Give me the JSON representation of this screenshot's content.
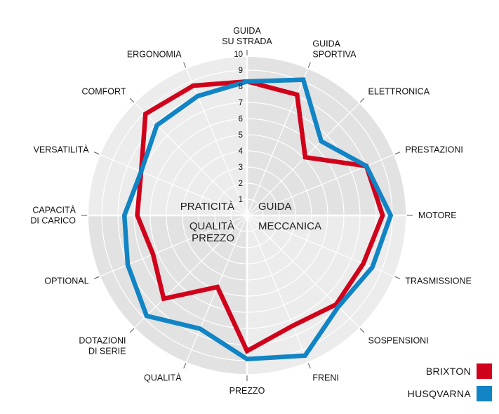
{
  "chart_data": {
    "type": "radar",
    "title": "",
    "scale": {
      "min": 0,
      "max": 10,
      "ticks": [
        "1",
        "2",
        "3",
        "4",
        "5",
        "6",
        "7",
        "8",
        "9",
        "10"
      ]
    },
    "axes": [
      [
        "GUIDA",
        "SU STRADA"
      ],
      [
        "GUIDA",
        "SPORTIVA"
      ],
      [
        "ELETTRONICA"
      ],
      [
        "PRESTAZIONI"
      ],
      [
        "MOTORE"
      ],
      [
        "TRASMISSIONE"
      ],
      [
        "SOSPENSIONI"
      ],
      [
        "FRENI"
      ],
      [
        "PREZZO"
      ],
      [
        "QUALITÀ"
      ],
      [
        "DOTAZIONI",
        "DI SERIE"
      ],
      [
        "OPTIONAL"
      ],
      [
        "CAPACITÀ",
        "DI CARICO"
      ],
      [
        "VERSATILITÀ"
      ],
      [
        "COMFORT"
      ],
      [
        "ERGONOMIA"
      ]
    ],
    "quadrants": [
      {
        "lines": [
          "GUIDA"
        ],
        "position": "upper-right"
      },
      {
        "lines": [
          "MECCANICA"
        ],
        "position": "lower-right"
      },
      {
        "lines": [
          "QUALITÀ",
          "PREZZO"
        ],
        "position": "lower-left"
      },
      {
        "lines": [
          "PRATICITÀ"
        ],
        "position": "upper-left"
      }
    ],
    "series": [
      {
        "name": "BRIXTON",
        "color": "#d0021b",
        "values": [
          8.3,
          8.1,
          5.1,
          8.0,
          8.4,
          7.8,
          7.8,
          7.4,
          8.4,
          4.8,
          7.3,
          6.3,
          6.8,
          7.1,
          8.9,
          8.7
        ]
      },
      {
        "name": "HUSQVARNA",
        "color": "#1184c5",
        "values": [
          8.3,
          9.1,
          6.5,
          8.0,
          8.9,
          8.4,
          8.0,
          9.4,
          8.9,
          7.6,
          8.8,
          8.0,
          7.6,
          7.1,
          7.9,
          8.0
        ]
      }
    ],
    "legend_position": "bottom-right"
  }
}
